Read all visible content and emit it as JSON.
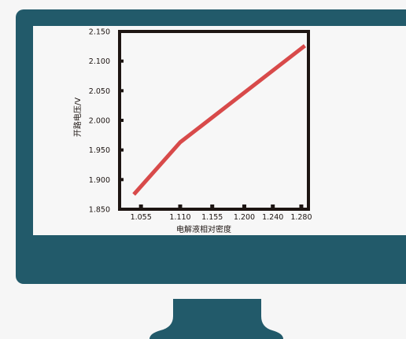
{
  "colors": {
    "monitor": "#225a6a",
    "screen": "#f7f7f7",
    "background": "#f6f6f6",
    "axis": "#1d1512",
    "line": "#d84a4a"
  },
  "chart_data": {
    "type": "line",
    "title": "",
    "xlabel": "电解液相对密度",
    "ylabel": "开路电压/V",
    "xlim": [
      1.025,
      1.29
    ],
    "ylim": [
      1.85,
      2.15
    ],
    "x_ticks": [
      "1.055",
      "1.110",
      "1.155",
      "1.200",
      "1.240",
      "1.280"
    ],
    "y_ticks": [
      "1.850",
      "1.900",
      "1.950",
      "2.000",
      "2.050",
      "2.100",
      "2.150"
    ],
    "grid": false,
    "series": [
      {
        "x": [
          1.045,
          1.11,
          1.285
        ],
        "y": [
          1.875,
          1.963,
          2.126
        ]
      }
    ]
  }
}
